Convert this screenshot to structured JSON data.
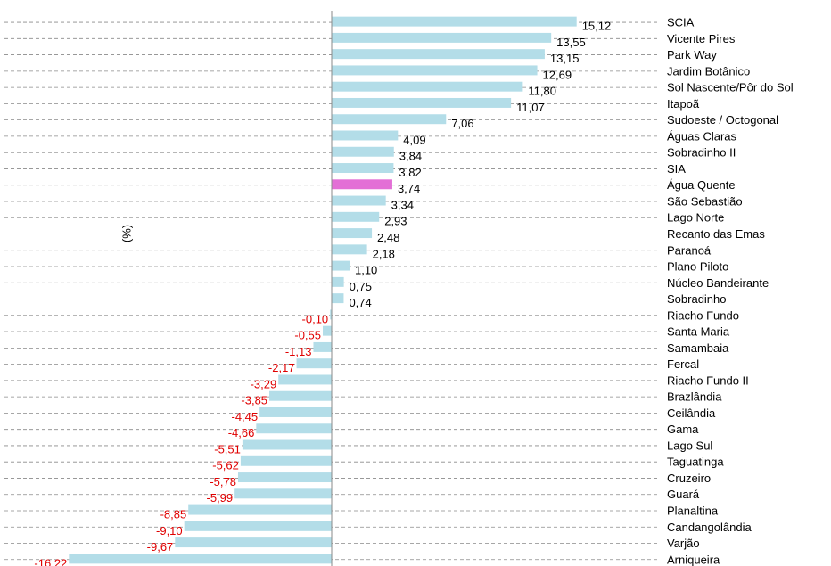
{
  "chart_data": {
    "type": "barh",
    "y_label": "(%)",
    "categories": [
      "SCIA",
      "Vicente Pires",
      "Park Way",
      "Jardim Botânico",
      "Sol Nascente/Pôr do Sol",
      "Itapoã",
      "Sudoeste / Octogonal",
      "Águas Claras",
      "Sobradinho II",
      "SIA",
      "Água Quente",
      "São Sebastião",
      "Lago Norte",
      "Recanto das Emas",
      "Paranoá",
      "Plano Piloto",
      "Núcleo Bandeirante",
      "Sobradinho",
      "Riacho Fundo",
      "Santa Maria",
      "Samambaia",
      "Fercal",
      "Riacho Fundo II",
      "Brazlândia",
      "Ceilândia",
      "Gama",
      "Lago Sul",
      "Taguatinga",
      "Cruzeiro",
      "Guará",
      "Planaltina",
      "Candangolândia",
      "Varjão",
      "Arniqueira"
    ],
    "values": [
      15.12,
      13.55,
      13.15,
      12.69,
      11.8,
      11.07,
      7.06,
      4.09,
      3.84,
      3.82,
      3.74,
      3.34,
      2.93,
      2.48,
      2.18,
      1.1,
      0.75,
      0.74,
      -0.1,
      -0.55,
      -1.13,
      -2.17,
      -3.29,
      -3.85,
      -4.45,
      -4.66,
      -5.51,
      -5.62,
      -5.78,
      -5.99,
      -8.85,
      -9.1,
      -9.67,
      -16.22
    ],
    "value_labels": [
      "15,12",
      "13,55",
      "13,15",
      "12,69",
      "11,80",
      "11,07",
      "7,06",
      "4,09",
      "3,84",
      "3,82",
      "3,74",
      "3,34",
      "2,93",
      "2,48",
      "2,18",
      "1,10",
      "0,75",
      "0,74",
      "-0,10",
      "-0,55",
      "-1,13",
      "-2,17",
      "-3,29",
      "-3,85",
      "-4,45",
      "-4,66",
      "-5,51",
      "-5,62",
      "-5,78",
      "-5,99",
      "-8,85",
      "-9,10",
      "-9,67",
      "-16,22"
    ],
    "colors": [
      "#b3dde8",
      "#b3dde8",
      "#b3dde8",
      "#b3dde8",
      "#b3dde8",
      "#b3dde8",
      "#b3dde8",
      "#b3dde8",
      "#b3dde8",
      "#b3dde8",
      "#e36fd6",
      "#b3dde8",
      "#b3dde8",
      "#b3dde8",
      "#b3dde8",
      "#b3dde8",
      "#b3dde8",
      "#b3dde8",
      "#b3dde8",
      "#b3dde8",
      "#b3dde8",
      "#b3dde8",
      "#b3dde8",
      "#b3dde8",
      "#b3dde8",
      "#b3dde8",
      "#b3dde8",
      "#b3dde8",
      "#b3dde8",
      "#b3dde8",
      "#b3dde8",
      "#b3dde8",
      "#b3dde8",
      "#b3dde8"
    ],
    "negative_label_color": "#e00000",
    "xlim": [
      -20.2,
      20.2
    ]
  }
}
